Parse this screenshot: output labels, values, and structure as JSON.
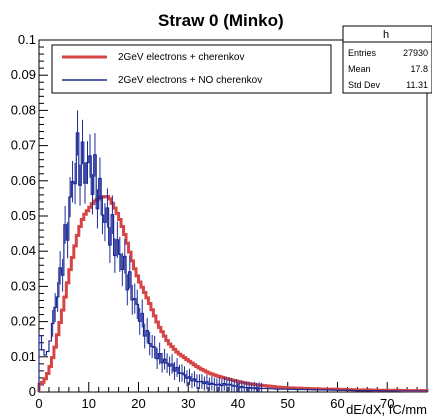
{
  "chart_data": {
    "type": "line",
    "title": "Straw 0 (Minko)",
    "xlabel": "dE/dX, fC/mm",
    "ylabel": "",
    "xlim": [
      0,
      78
    ],
    "ylim": [
      0,
      0.1
    ],
    "x_ticks": [
      0,
      10,
      20,
      30,
      40,
      50,
      60,
      70
    ],
    "y_ticks": [
      0,
      0.01,
      0.02,
      0.03,
      0.04,
      0.05,
      0.06,
      0.07,
      0.08,
      0.09,
      0.1
    ],
    "y_tick_labels": [
      "0",
      "0.01",
      "0.02",
      "0.03",
      "0.04",
      "0.05",
      "0.06",
      "0.07",
      "0.08",
      "0.09",
      "0.1"
    ],
    "bin_width": 0.5,
    "legend": {
      "position": "top-left",
      "entries": [
        "2GeV electrons + cherenkov",
        "2GeV electrons + NO cherenkov"
      ]
    },
    "stats_box": {
      "title": "h",
      "rows": [
        {
          "label": "Entries",
          "value": "27930"
        },
        {
          "label": "Mean",
          "value": "17.8"
        },
        {
          "label": "Std Dev",
          "value": "11.31"
        }
      ]
    },
    "series": [
      {
        "name": "2GeV electrons + cherenkov",
        "color": "#d64545",
        "kind": "histogram",
        "x": [
          0,
          1,
          2,
          3,
          4,
          5,
          6,
          7,
          8,
          9,
          10,
          11,
          12,
          13,
          14,
          15,
          16,
          17,
          18,
          19,
          20,
          22,
          24,
          26,
          28,
          30,
          32,
          34,
          36,
          38,
          40,
          42,
          44,
          46,
          48,
          50,
          52,
          54,
          56,
          58,
          60,
          62,
          64,
          66,
          68,
          70,
          72,
          74,
          76,
          78
        ],
        "y": [
          0.002,
          0.003,
          0.006,
          0.011,
          0.018,
          0.025,
          0.033,
          0.04,
          0.046,
          0.05,
          0.052,
          0.054,
          0.055,
          0.0555,
          0.0555,
          0.053,
          0.05,
          0.046,
          0.041,
          0.036,
          0.032,
          0.026,
          0.019,
          0.014,
          0.011,
          0.009,
          0.007,
          0.0055,
          0.0045,
          0.0037,
          0.003,
          0.0024,
          0.002,
          0.0017,
          0.0014,
          0.0012,
          0.0011,
          0.001,
          0.0009,
          0.0008,
          0.0008,
          0.0007,
          0.0006,
          0.0006,
          0.0005,
          0.0005,
          0.0005,
          0.0004,
          0.0004,
          0.0004
        ]
      },
      {
        "name": "2GeV electrons + NO cherenkov",
        "color": "#1c2a96",
        "kind": "histogram",
        "x": [
          0,
          1,
          2,
          3,
          4,
          5,
          6,
          7,
          8,
          9,
          10,
          11,
          12,
          13,
          14,
          15,
          16,
          17,
          18,
          19,
          20,
          22,
          24,
          26,
          28,
          30,
          32,
          34,
          36,
          38,
          40,
          42,
          44,
          46,
          48,
          50,
          52,
          54,
          56,
          58,
          60,
          62,
          64,
          66,
          68,
          70,
          72,
          74,
          76,
          78
        ],
        "y": [
          0.018,
          0.01,
          0.012,
          0.022,
          0.03,
          0.04,
          0.05,
          0.062,
          0.068,
          0.063,
          0.065,
          0.061,
          0.058,
          0.05,
          0.048,
          0.044,
          0.04,
          0.036,
          0.032,
          0.027,
          0.023,
          0.015,
          0.01,
          0.008,
          0.006,
          0.004,
          0.003,
          0.0025,
          0.002,
          0.0022,
          0.0015,
          0.0012,
          0.001,
          0.001,
          0.0008,
          0.0008,
          0.0007,
          0.0007,
          0.0006,
          0.0006,
          0.0005,
          0.0005,
          0.0004,
          0.0004,
          0.0004,
          0.0003,
          0.0003,
          0.0003,
          0.0003,
          0.0003
        ]
      }
    ]
  }
}
